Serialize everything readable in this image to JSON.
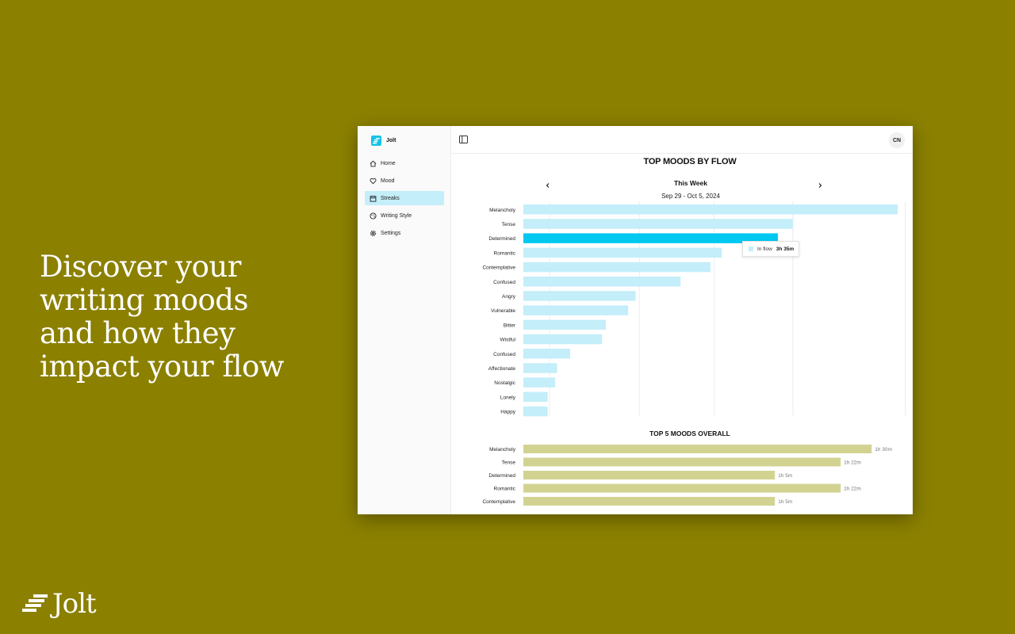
{
  "promo": {
    "headline": [
      "Discover your",
      "writing moods",
      "and how they",
      "impact your flow"
    ],
    "brand_name": "Jolt"
  },
  "app": {
    "name": "Jolt",
    "nav": [
      {
        "label": "Home",
        "icon": "home-icon"
      },
      {
        "label": "Mood",
        "icon": "heart-icon"
      },
      {
        "label": "Streaks",
        "icon": "calendar-icon",
        "active": true
      },
      {
        "label": "Writing Style",
        "icon": "palette-icon"
      },
      {
        "label": "Settings",
        "icon": "gear-icon"
      }
    ],
    "avatar_initials": "CN"
  },
  "colors": {
    "background": "#8b8000",
    "accent": "#16c3e6",
    "bar_light": "#c4eef9",
    "bar_highlight": "#00c8f0",
    "bar_overall": "#d2d391"
  },
  "flow_section": {
    "title": "TOP MOODS BY FLOW",
    "period": "This Week",
    "range": "Sep 29 - Oct 5, 2024",
    "tooltip": {
      "series": "In flow",
      "value": "3h 35m"
    }
  },
  "overall_section": {
    "title": "TOP 5  MOODS OVERALL"
  },
  "chart_data": [
    {
      "type": "bar",
      "orientation": "horizontal",
      "title": "TOP MOODS BY FLOW",
      "categories": [
        "Melancholy",
        "Tense",
        "Determined",
        "Romantic",
        "Contemplative",
        "Confused",
        "Angry",
        "Vulnerable",
        "Bitter",
        "Wistful",
        "Confused",
        "Affectionate",
        "Nostalgic",
        "Lonely",
        "Happy"
      ],
      "series": [
        {
          "name": "In flow",
          "values": [
            100,
            72,
            68,
            53,
            50,
            42,
            30,
            28,
            22,
            21,
            12.5,
            9,
            8.5,
            6.5,
            6.5
          ]
        }
      ],
      "highlight_index": 2,
      "grid": true
    },
    {
      "type": "bar",
      "orientation": "horizontal",
      "title": "TOP 5  MOODS OVERALL",
      "categories": [
        "Melancholy",
        "Tense",
        "Determined",
        "Romantic",
        "Contemplative"
      ],
      "values": [
        90,
        82,
        65,
        82,
        65
      ],
      "value_labels": [
        "1h 30m",
        "1h 22m",
        "1h 5m",
        "1h 22m",
        "1h 5m"
      ]
    }
  ]
}
